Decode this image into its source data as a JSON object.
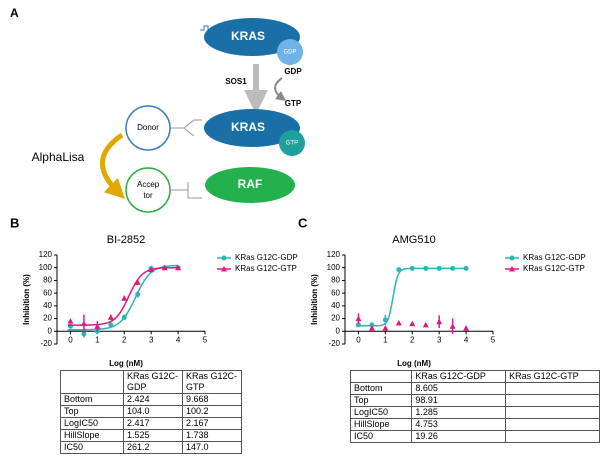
{
  "panel_a": {
    "label": "A",
    "kras_top": "KRAS",
    "gdp_bound": "GDP",
    "sos1": "SOS1",
    "gdp_out": "GDP",
    "gtp_in": "GTP",
    "donor": "Donor",
    "kras_bottom": "KRAS",
    "gtp_bound": "GTP",
    "alphalisa": "AlphaLisa",
    "acceptor": "Accep tor",
    "raf": "RAF"
  },
  "chart_data": [
    {
      "type": "scatter",
      "panel": "B",
      "title": "BI-2852",
      "xlabel": "Log (nM)",
      "ylabel": "Inhibition (%)",
      "xlim": [
        -0.5,
        5
      ],
      "xticks": [
        0,
        1,
        2,
        3,
        4,
        5
      ],
      "ylim": [
        -20,
        120
      ],
      "yticks": [
        -20,
        0,
        20,
        40,
        60,
        80,
        100,
        120
      ],
      "x": [
        0,
        0.5,
        1,
        1.5,
        2,
        2.5,
        3,
        3.5,
        4
      ],
      "series": [
        {
          "name": "KRas G12C-GDP",
          "color": "#2bb5b5",
          "marker": "circle",
          "values": [
            8,
            -4,
            0,
            10,
            22,
            58,
            99,
            100,
            100
          ],
          "errors": [
            3,
            6,
            5,
            4,
            4,
            5,
            2,
            2,
            2
          ]
        },
        {
          "name": "KRas G12C-GTP",
          "color": "#e0197d",
          "marker": "triangle",
          "values": [
            16,
            12,
            8,
            22,
            52,
            77,
            97,
            100,
            100
          ],
          "errors": [
            2,
            14,
            8,
            4,
            4,
            4,
            2,
            2,
            2
          ]
        }
      ]
    },
    {
      "type": "scatter",
      "panel": "C",
      "title": "AMG510",
      "xlabel": "Log (nM)",
      "ylabel": "Inhibition (%)",
      "xlim": [
        -0.5,
        5
      ],
      "xticks": [
        0,
        1,
        2,
        3,
        4,
        5
      ],
      "ylim": [
        -20,
        120
      ],
      "yticks": [
        -20,
        0,
        20,
        40,
        60,
        80,
        100,
        120
      ],
      "x": [
        0,
        0.5,
        1,
        1.5,
        2,
        2.5,
        3,
        3.5,
        4
      ],
      "series": [
        {
          "name": "KRas G12C-GDP",
          "color": "#2bb5b5",
          "marker": "circle",
          "values": [
            10,
            10,
            18,
            97,
            99,
            99,
            99,
            99,
            99
          ],
          "errors": [
            3,
            3,
            8,
            2,
            2,
            2,
            2,
            2,
            2
          ]
        },
        {
          "name": "KRas G12C-GTP",
          "color": "#e0197d",
          "marker": "triangle",
          "values": [
            20,
            5,
            5,
            13,
            12,
            10,
            15,
            8,
            5
          ],
          "errors": [
            8,
            3,
            3,
            3,
            2,
            2,
            10,
            12,
            3
          ]
        }
      ]
    }
  ],
  "tables": [
    {
      "columns": [
        "KRas G12C-GDP",
        "KRas G12C-GTP"
      ],
      "rows": [
        [
          "Bottom",
          "2.424",
          "9.668"
        ],
        [
          "Top",
          "104.0",
          "100.2"
        ],
        [
          "LogIC50",
          "2.417",
          "2.167"
        ],
        [
          "HillSlope",
          "1.525",
          "1.738"
        ],
        [
          "IC50",
          "261.2",
          "147.0"
        ]
      ]
    },
    {
      "columns": [
        "KRas G12C-GDP",
        "KRas G12C-GTP"
      ],
      "rows": [
        [
          "Bottom",
          "8.605"
        ],
        [
          "Top",
          "98.91"
        ],
        [
          "LogIC50",
          "1.285"
        ],
        [
          "HillSlope",
          "4.753"
        ],
        [
          "IC50",
          "19.26"
        ]
      ]
    }
  ]
}
